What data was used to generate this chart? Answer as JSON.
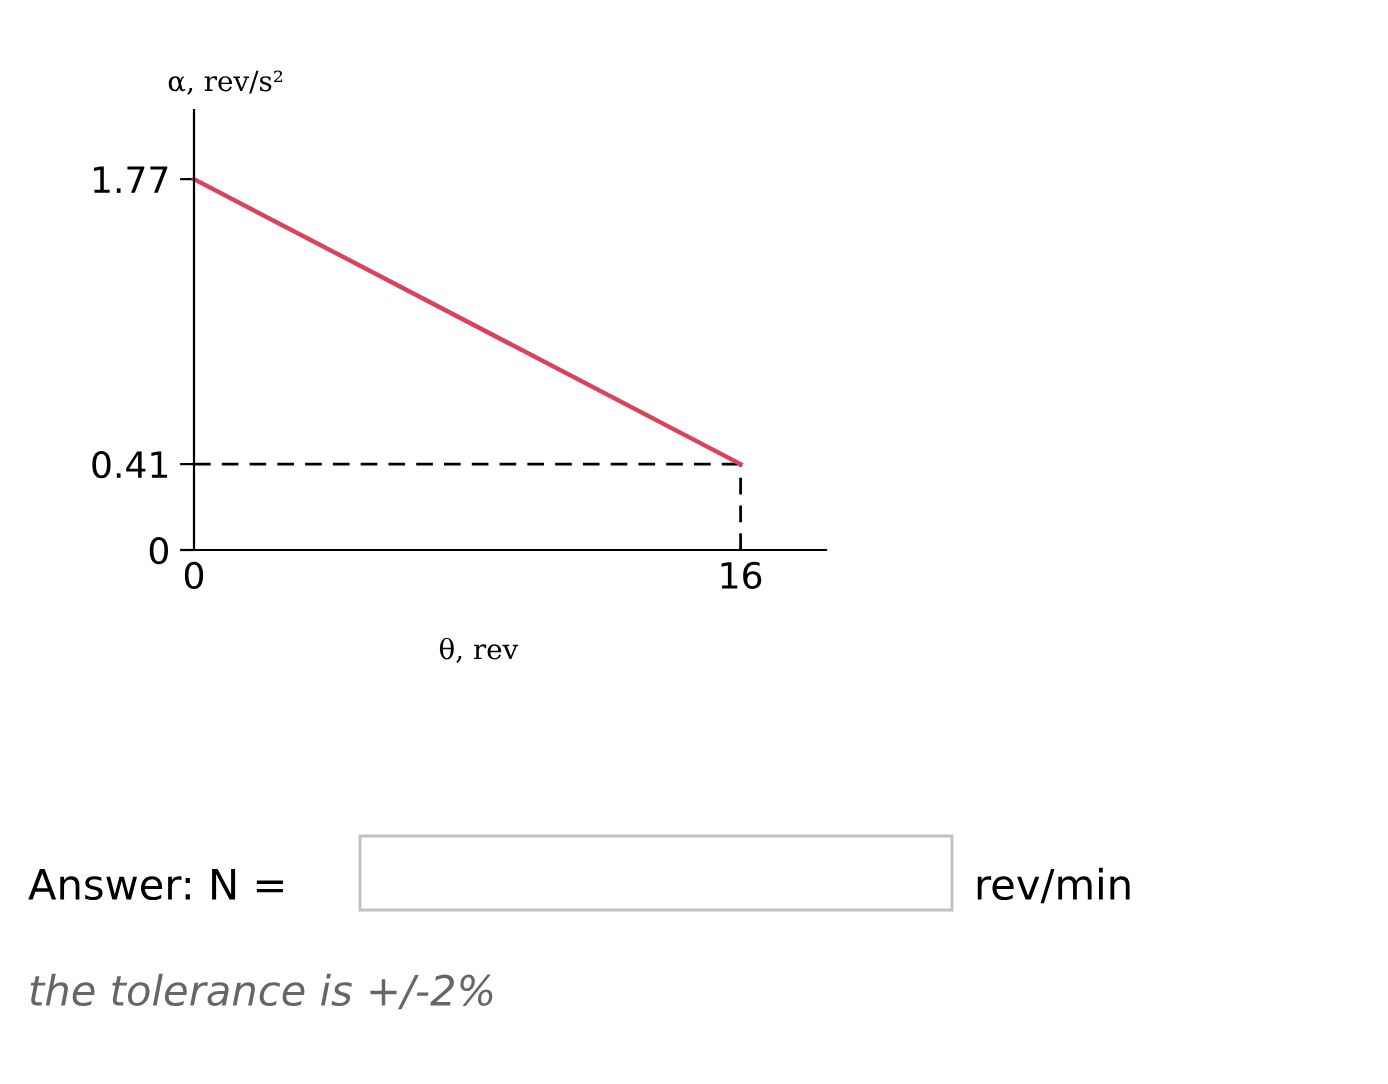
{
  "chart_data": {
    "type": "line",
    "xlabel": "θ, rev",
    "ylabel": "α, rev/s²",
    "x": [
      0,
      16
    ],
    "series": [
      {
        "color": "#d9435e",
        "values": [
          1.77,
          0.41
        ]
      }
    ],
    "ref_lines": [
      {
        "axis": "y",
        "value": 0.41,
        "color": "#000000",
        "line_style": "dashed"
      },
      {
        "axis": "x",
        "value": 16,
        "color": "#000000",
        "line_style": "dashed"
      }
    ],
    "xlim": [
      0,
      18.5
    ],
    "ylim": [
      0,
      2.1
    ],
    "xticks": [
      0,
      16
    ],
    "yticks": [
      0,
      0.41,
      1.77
    ],
    "grid": false,
    "legend": false,
    "marker": "none",
    "line_style": "solid",
    "annotations": [
      "Answer: N =",
      "rev/min",
      "the tolerance is +/-2%"
    ]
  }
}
